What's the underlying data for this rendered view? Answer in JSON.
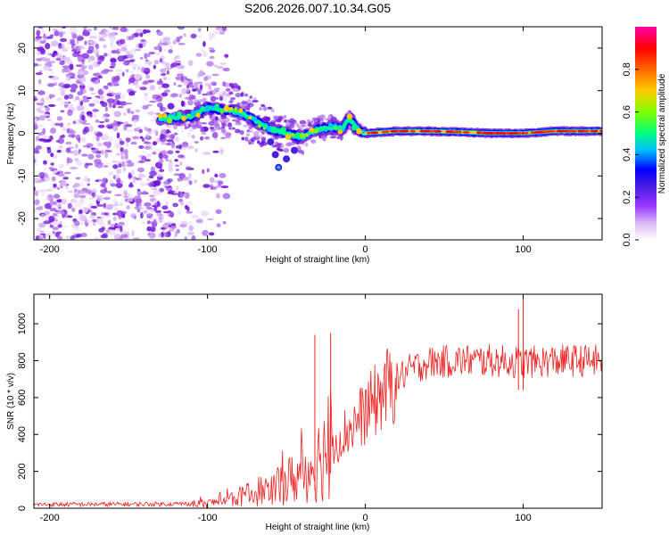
{
  "title": "S206.2026.007.10.34.G05",
  "chart_data": [
    {
      "type": "heatmap",
      "name": "spectrogram",
      "xlabel": "Height of straight line (km)",
      "ylabel": "Frequency (Hz)",
      "xlim": [
        -210,
        150
      ],
      "ylim": [
        -25,
        25
      ],
      "xticks": [
        -200,
        -100,
        0,
        100
      ],
      "yticks": [
        -20,
        -10,
        0,
        10,
        20
      ],
      "colorbar": {
        "label": "Normalized spectral amplitude",
        "range": [
          0,
          1
        ],
        "ticks": [
          "0.0",
          "0.2",
          "0.4",
          "0.6",
          "0.8"
        ],
        "colors": [
          "#ffffff",
          "#d9b8f5",
          "#9933ff",
          "#4a1ee0",
          "#0000ff",
          "#00bfff",
          "#00ff80",
          "#80ff00",
          "#ffcc00",
          "#ff6600",
          "#ff0000",
          "#ff00aa"
        ]
      },
      "ridge": {
        "description_points_x": [
          -130,
          -110,
          -100,
          -90,
          -80,
          -70,
          -60,
          -50,
          -40,
          -30,
          -20,
          -15,
          -10,
          -5,
          0,
          20,
          40,
          60,
          80,
          100,
          120,
          150
        ],
        "frequency_hz": [
          3.5,
          4,
          6,
          5.5,
          5,
          3,
          1,
          0,
          -1,
          1,
          1.5,
          1,
          3.5,
          1,
          0,
          0.5,
          0.5,
          0.3,
          0,
          0,
          0.5,
          0.5
        ]
      },
      "noise_region_x": [
        -210,
        -100
      ]
    },
    {
      "type": "line",
      "name": "snr",
      "xlabel": "Height of straight line (km)",
      "ylabel": "SNR (10 * v/v)",
      "xlim": [
        -210,
        150
      ],
      "ylim": [
        0,
        1160
      ],
      "xticks": [
        -200,
        -100,
        0,
        100
      ],
      "yticks": [
        0,
        200,
        400,
        600,
        800,
        1000
      ],
      "color": "#ee2222",
      "series_envelope": {
        "x": [
          -210,
          -150,
          -100,
          -80,
          -60,
          -40,
          -30,
          -20,
          -10,
          0,
          10,
          20,
          30,
          40,
          60,
          80,
          100,
          120,
          150
        ],
        "y": [
          20,
          22,
          25,
          60,
          110,
          180,
          260,
          360,
          430,
          520,
          620,
          700,
          760,
          790,
          800,
          800,
          790,
          800,
          800
        ]
      },
      "spikes": [
        {
          "x": -22,
          "y": 950
        },
        {
          "x": -32,
          "y": 940
        },
        {
          "x": 100,
          "y": 1160
        },
        {
          "x": 97,
          "y": 1080
        }
      ]
    }
  ]
}
